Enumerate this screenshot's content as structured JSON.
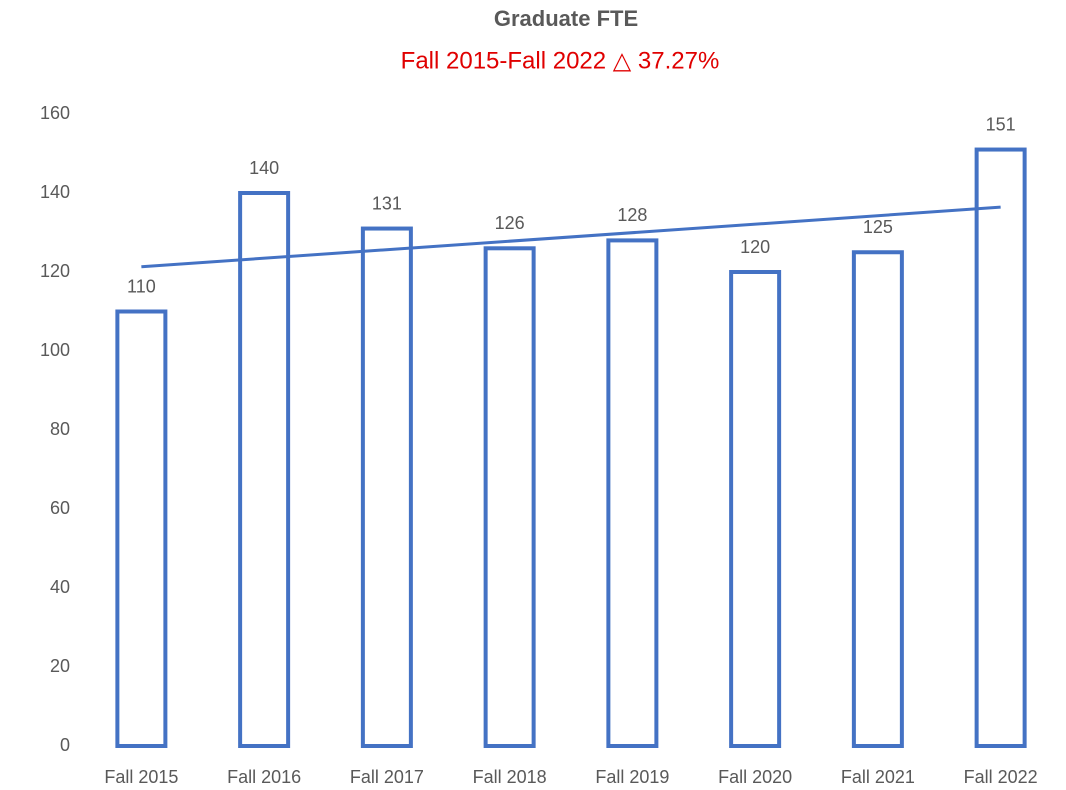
{
  "chart_data": {
    "type": "bar",
    "title": "Graduate FTE",
    "subtitle": "Fall 2015-Fall 2022 △ 37.27%",
    "categories": [
      "Fall 2015",
      "Fall 2016",
      "Fall 2017",
      "Fall 2018",
      "Fall 2019",
      "Fall 2020",
      "Fall 2021",
      "Fall 2022"
    ],
    "values": [
      110,
      140,
      131,
      126,
      128,
      120,
      125,
      151
    ],
    "color": "#4472c4",
    "subtitle_color": "#e00000",
    "ylim": [
      0,
      160
    ],
    "yticks": [
      0,
      20,
      40,
      60,
      80,
      100,
      120,
      140,
      160
    ],
    "grid": false,
    "trendline": "linear"
  }
}
